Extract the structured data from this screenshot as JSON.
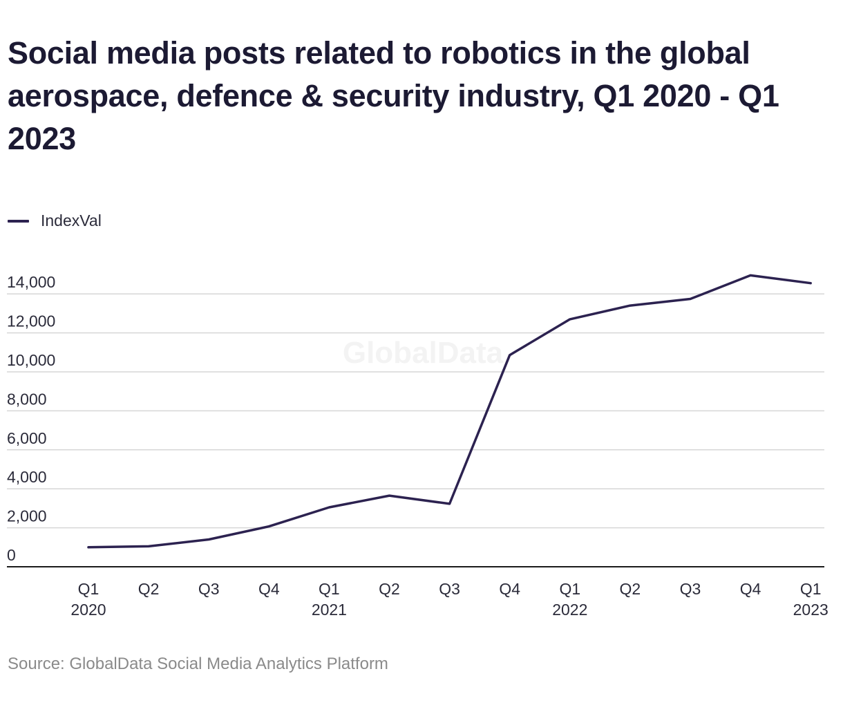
{
  "title": "Social media posts related to robotics in the global aerospace, defence & security industry, Q1 2020 - Q1 2023",
  "source": "Source: GlobalData Social Media Analytics Platform",
  "watermark": "GlobalData",
  "colors": {
    "line": "#2c2250",
    "grid": "#d6d6d6",
    "axis": "#1a1a1a",
    "text": "#2b2b3a"
  },
  "chart_data": {
    "type": "line",
    "x": [
      {
        "quarter": "Q1",
        "year": "2020"
      },
      {
        "quarter": "Q2",
        "year": ""
      },
      {
        "quarter": "Q3",
        "year": ""
      },
      {
        "quarter": "Q4",
        "year": ""
      },
      {
        "quarter": "Q1",
        "year": "2021"
      },
      {
        "quarter": "Q2",
        "year": ""
      },
      {
        "quarter": "Q3",
        "year": ""
      },
      {
        "quarter": "Q4",
        "year": ""
      },
      {
        "quarter": "Q1",
        "year": "2022"
      },
      {
        "quarter": "Q2",
        "year": ""
      },
      {
        "quarter": "Q3",
        "year": ""
      },
      {
        "quarter": "Q4",
        "year": ""
      },
      {
        "quarter": "Q1",
        "year": "2023"
      }
    ],
    "series": [
      {
        "name": "IndexVal",
        "values": [
          1000,
          1050,
          1400,
          2070,
          3050,
          3650,
          3230,
          10860,
          12700,
          13400,
          13740,
          14950,
          14550
        ]
      }
    ],
    "yticks": [
      0,
      2000,
      4000,
      6000,
      8000,
      10000,
      12000,
      14000
    ],
    "ytick_labels": [
      "0",
      "2,000",
      "4,000",
      "6,000",
      "8,000",
      "10,000",
      "12,000",
      "14,000"
    ],
    "ylim": [
      0,
      15000
    ],
    "grid": true,
    "legend": "top-left"
  }
}
